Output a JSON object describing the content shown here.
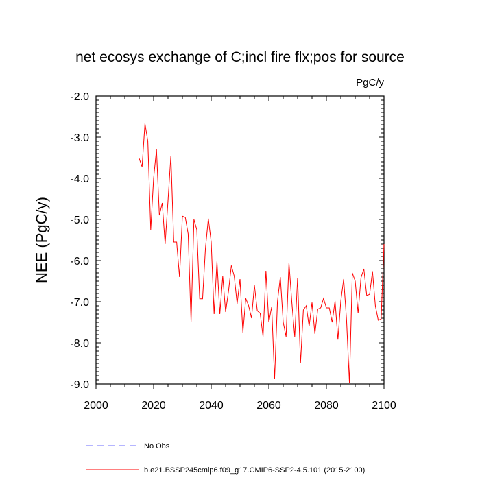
{
  "chart_data": {
    "type": "line",
    "title": "net ecosys exchange of C;incl fire flx;pos for source",
    "units": "PgC/y",
    "xlabel": "",
    "ylabel": "NEE  (PgC/y)",
    "xlim": [
      2000,
      2100
    ],
    "ylim": [
      -9.0,
      -2.0
    ],
    "xticks": [
      2000,
      2020,
      2040,
      2060,
      2080,
      2100
    ],
    "xtick_labels": [
      "2000",
      "2020",
      "2040",
      "2060",
      "2080",
      "2100"
    ],
    "yticks": [
      -2.0,
      -3.0,
      -4.0,
      -5.0,
      -6.0,
      -7.0,
      -8.0,
      -9.0
    ],
    "ytick_labels": [
      "-2.0",
      "-3.0",
      "-4.0",
      "-5.0",
      "-6.0",
      "-7.0",
      "-8.0",
      "-9.0"
    ],
    "grid": false,
    "legend_position": "bottom",
    "series": [
      {
        "name": "No Obs",
        "color": "#6b6bff",
        "style": "dashed",
        "x": [],
        "values": []
      },
      {
        "name": "b.e21.BSSP245cmip6.f09_g17.CMIP6-SSP2-4.5.101 (2015-2100)",
        "color": "#ff0000",
        "style": "solid",
        "x": [
          2015,
          2016,
          2017,
          2018,
          2019,
          2020,
          2021,
          2022,
          2023,
          2024,
          2025,
          2026,
          2027,
          2028,
          2029,
          2030,
          2031,
          2032,
          2033,
          2034,
          2035,
          2036,
          2037,
          2038,
          2039,
          2040,
          2041,
          2042,
          2043,
          2044,
          2045,
          2046,
          2047,
          2048,
          2049,
          2050,
          2051,
          2052,
          2053,
          2054,
          2055,
          2056,
          2057,
          2058,
          2059,
          2060,
          2061,
          2062,
          2063,
          2064,
          2065,
          2066,
          2067,
          2068,
          2069,
          2070,
          2071,
          2072,
          2073,
          2074,
          2075,
          2076,
          2077,
          2078,
          2079,
          2080,
          2081,
          2082,
          2083,
          2084,
          2085,
          2086,
          2087,
          2088,
          2089,
          2090,
          2091,
          2092,
          2093,
          2094,
          2095,
          2096,
          2097,
          2098,
          2099,
          2100
        ],
        "values": [
          -3.52,
          -3.72,
          -2.67,
          -3.1,
          -5.25,
          -4.0,
          -3.3,
          -4.9,
          -4.6,
          -5.6,
          -4.55,
          -3.45,
          -5.55,
          -5.55,
          -6.4,
          -4.92,
          -4.95,
          -5.35,
          -7.5,
          -5.0,
          -5.25,
          -6.93,
          -6.93,
          -5.7,
          -4.98,
          -5.55,
          -7.3,
          -6.02,
          -7.3,
          -6.38,
          -7.25,
          -6.75,
          -6.12,
          -6.38,
          -7.05,
          -6.45,
          -7.75,
          -6.92,
          -7.1,
          -7.4,
          -6.6,
          -7.22,
          -7.28,
          -7.85,
          -6.25,
          -7.5,
          -7.12,
          -8.88,
          -7.0,
          -6.4,
          -7.5,
          -7.85,
          -6.05,
          -7.02,
          -7.85,
          -6.42,
          -8.5,
          -7.2,
          -7.1,
          -7.6,
          -7.02,
          -7.78,
          -7.18,
          -7.15,
          -6.92,
          -7.15,
          -7.15,
          -7.5,
          -6.98,
          -7.92,
          -6.98,
          -6.45,
          -7.45,
          -8.98,
          -6.3,
          -6.5,
          -7.28,
          -6.42,
          -6.2,
          -6.85,
          -6.82,
          -6.26,
          -7.1,
          -7.45,
          -7.42,
          -5.6
        ]
      }
    ]
  }
}
